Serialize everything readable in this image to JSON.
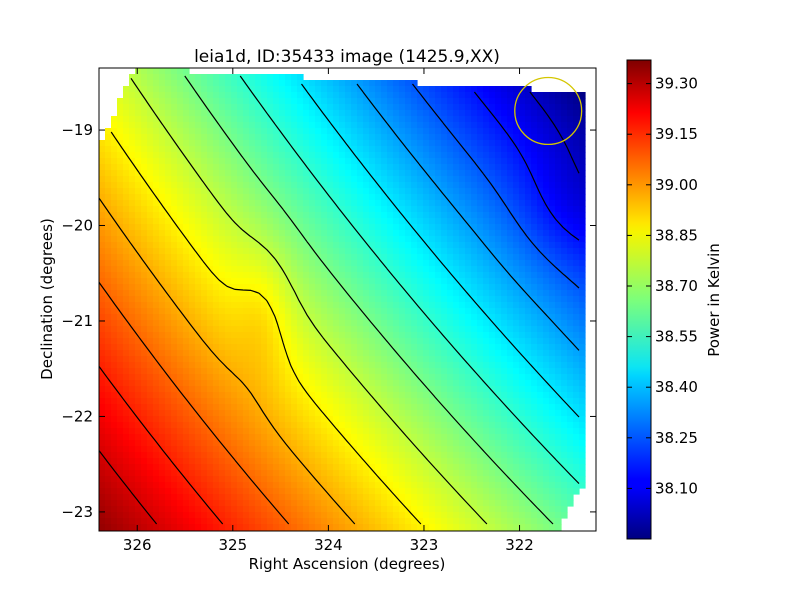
{
  "chart_data": {
    "type": "heatmap",
    "title": "leia1d, ID:35433 image (1425.9,XX)",
    "xlabel": "Right Ascension (degrees)",
    "ylabel": "Declination (degrees)",
    "xlim": [
      326.4,
      321.2
    ],
    "ylim": [
      -23.2,
      -18.35
    ],
    "x_ticks": [
      326,
      325,
      324,
      323,
      322
    ],
    "y_ticks": [
      -19,
      -20,
      -21,
      -22,
      -23
    ],
    "y_tick_labels": [
      "−19",
      "−20",
      "−21",
      "−22",
      "−23"
    ],
    "colorbar": {
      "label": "Power in Kelvin",
      "colormap": "jet",
      "range": [
        37.95,
        39.37
      ],
      "ticks": [
        39.3,
        39.15,
        39.0,
        38.85,
        38.7,
        38.55,
        38.4,
        38.25,
        38.1
      ],
      "tick_labels": [
        "39.30",
        "39.15",
        "39.00",
        "38.85",
        "38.70",
        "38.55",
        "38.40",
        "38.25",
        "38.10"
      ]
    },
    "contour_levels": [
      38.05,
      38.15,
      38.25,
      38.35,
      38.45,
      38.55,
      38.65,
      38.75,
      38.85,
      38.95,
      39.05,
      39.15,
      39.25
    ],
    "marker": {
      "shape": "circle",
      "ra": 321.7,
      "dec": -18.8,
      "radius_deg": 0.35,
      "color": "#d4c600"
    },
    "grid": false
  }
}
